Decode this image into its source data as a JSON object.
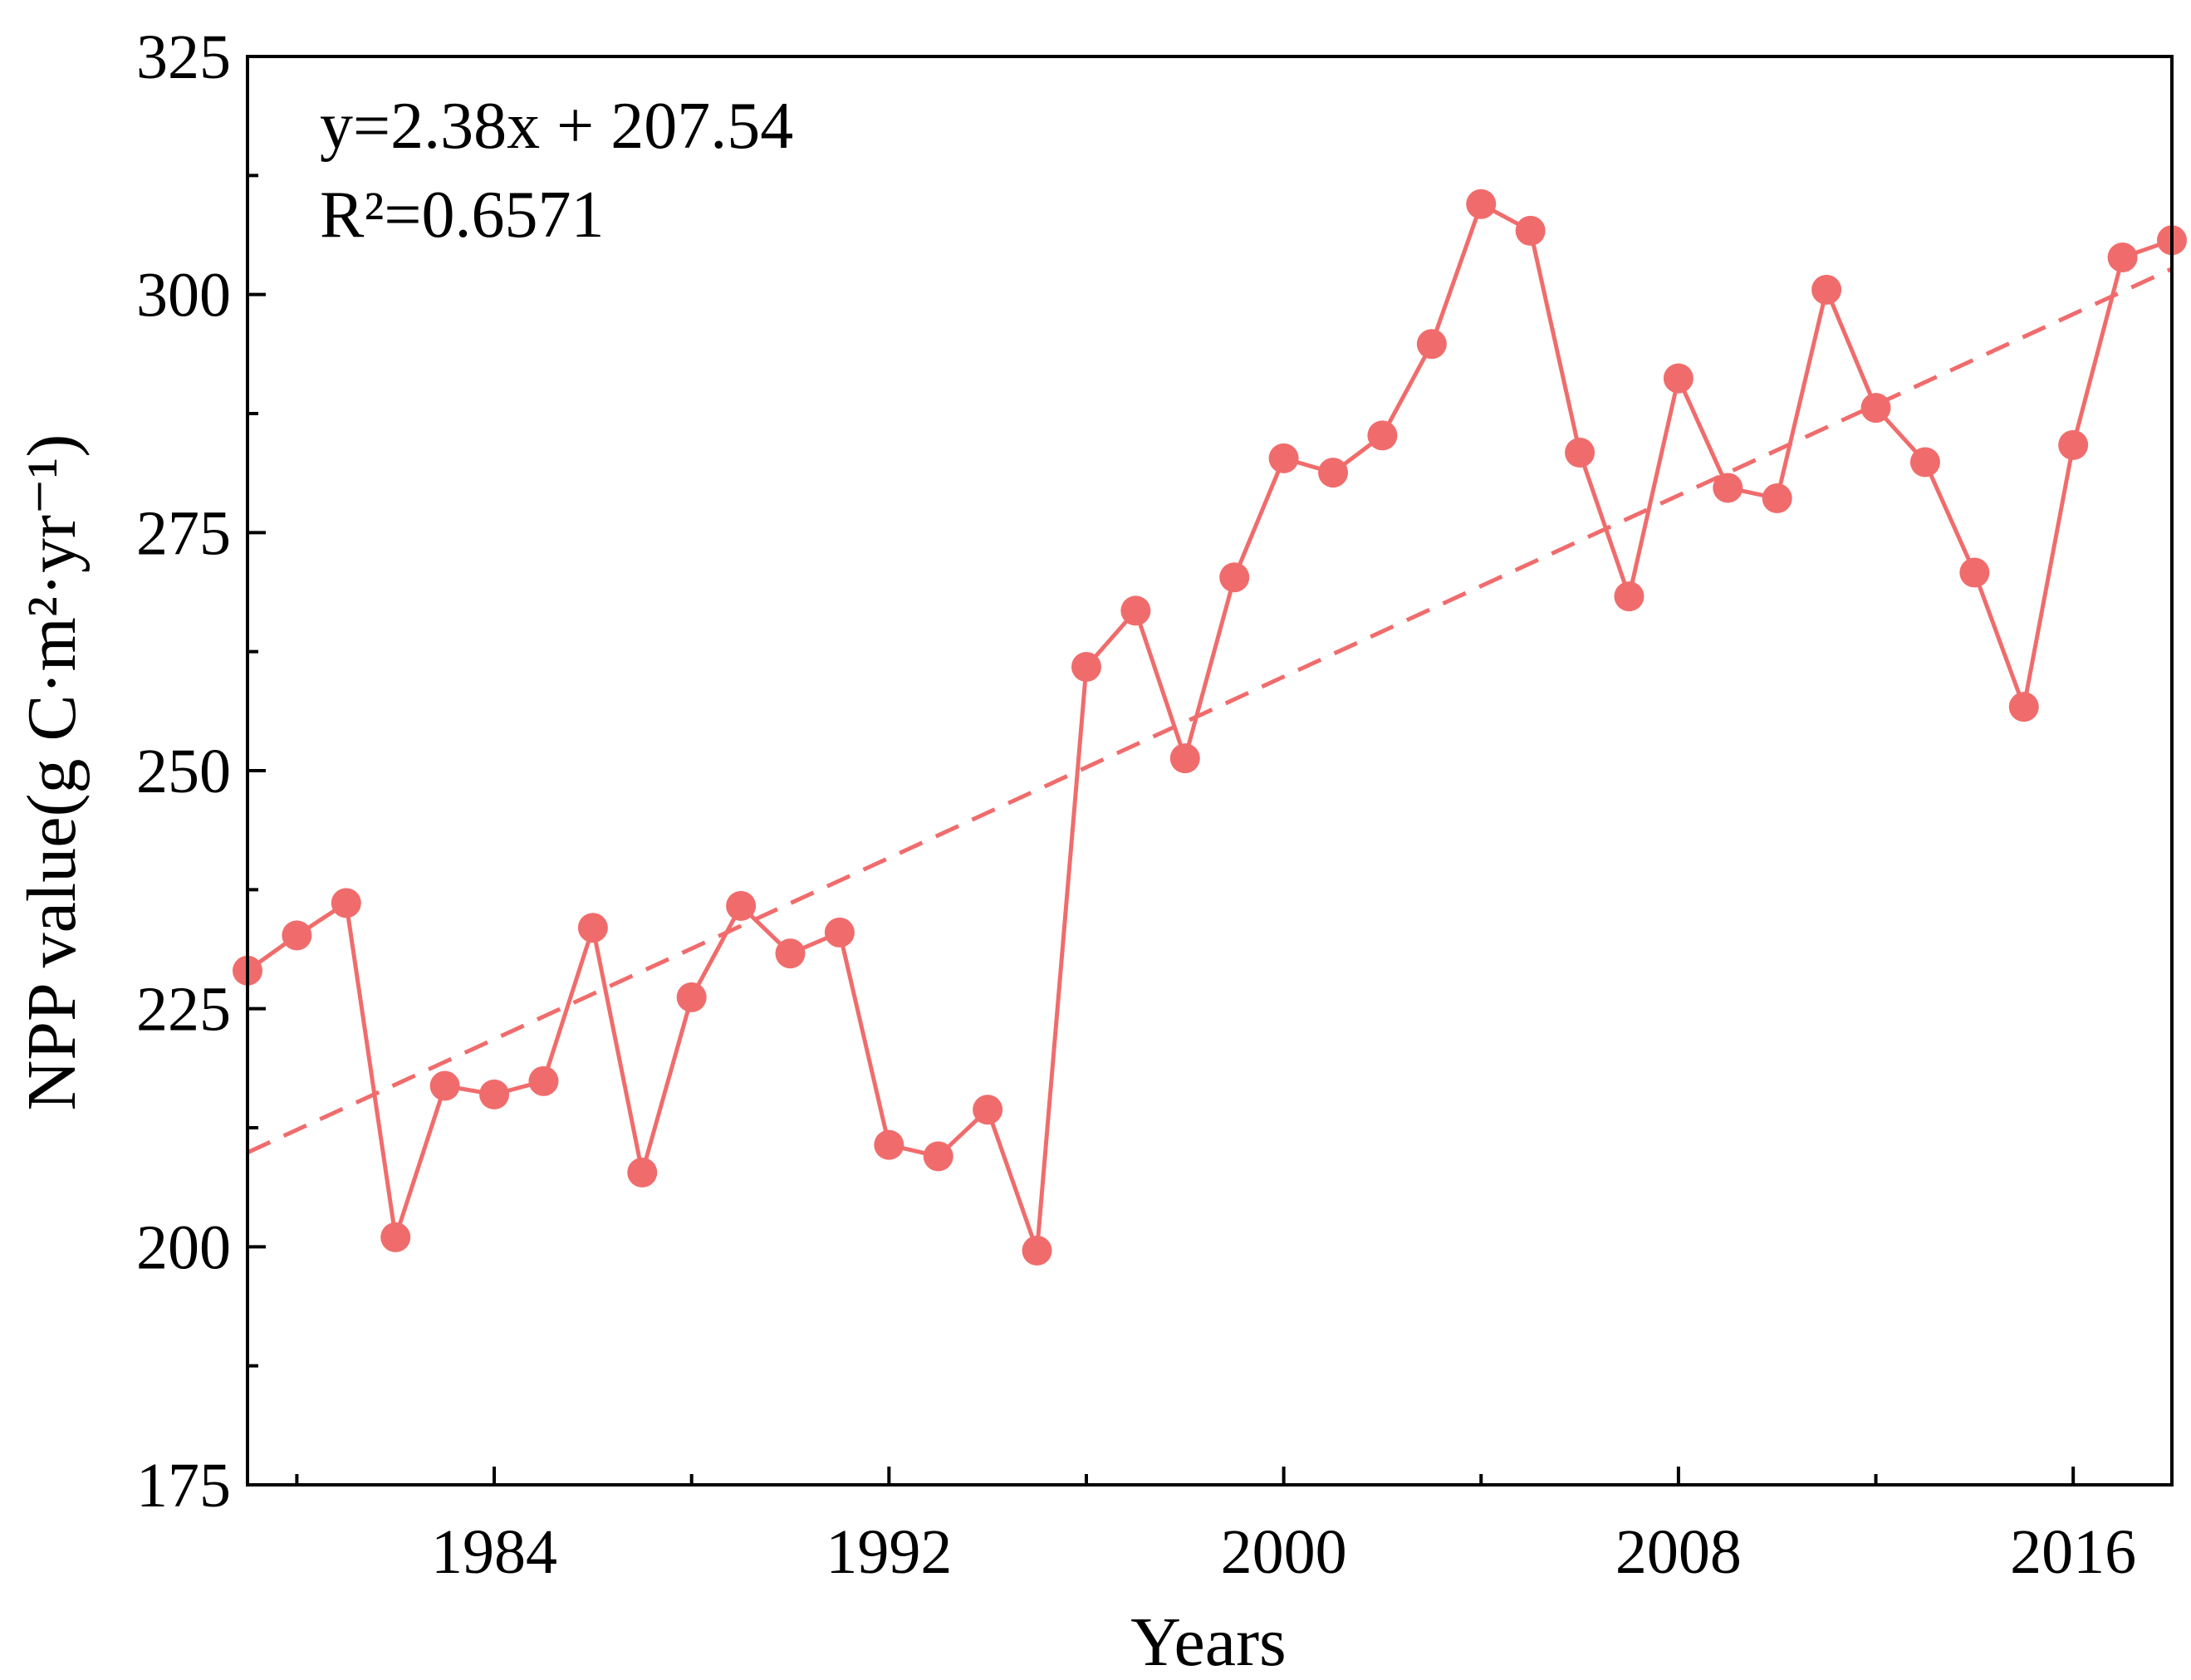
{
  "chart_data": {
    "type": "line",
    "title": "",
    "xlabel": "Years",
    "ylabel": "NPP value(g C·m²·yr⁻¹)",
    "xlim": [
      1979,
      2018
    ],
    "ylim": [
      175,
      325
    ],
    "x_ticks": [
      1984,
      1992,
      2000,
      2008,
      2016
    ],
    "y_ticks": [
      175,
      200,
      225,
      250,
      275,
      300,
      325
    ],
    "series": [
      {
        "name": "NPP",
        "color": "#f06c6c",
        "x": [
          1979,
          1980,
          1981,
          1982,
          1983,
          1984,
          1985,
          1986,
          1987,
          1988,
          1989,
          1990,
          1991,
          1992,
          1993,
          1994,
          1995,
          1996,
          1997,
          1998,
          1999,
          2000,
          2001,
          2002,
          2003,
          2004,
          2005,
          2006,
          2007,
          2008,
          2009,
          2010,
          2011,
          2012,
          2013,
          2014,
          2015,
          2016,
          2017,
          2018
        ],
        "values": [
          229.0,
          232.7,
          236.1,
          201.0,
          216.9,
          216.0,
          217.4,
          233.5,
          207.8,
          226.2,
          235.8,
          230.8,
          233.0,
          210.7,
          209.5,
          214.4,
          199.6,
          260.9,
          266.8,
          251.3,
          270.3,
          282.8,
          281.3,
          285.2,
          294.8,
          309.5,
          306.7,
          283.4,
          268.3,
          291.2,
          279.7,
          278.6,
          300.5,
          288.1,
          282.4,
          270.8,
          256.7,
          284.2,
          303.9,
          305.7
        ]
      }
    ],
    "trendline": {
      "name": "Linear fit",
      "color": "#f06c6c",
      "style": "dashed",
      "x_range": [
        1979,
        2018
      ],
      "y_range": [
        209.9,
        302.7
      ]
    },
    "annotations": {
      "equation": "y=2.38x + 207.54",
      "r_squared": "R²=0.6571"
    }
  }
}
